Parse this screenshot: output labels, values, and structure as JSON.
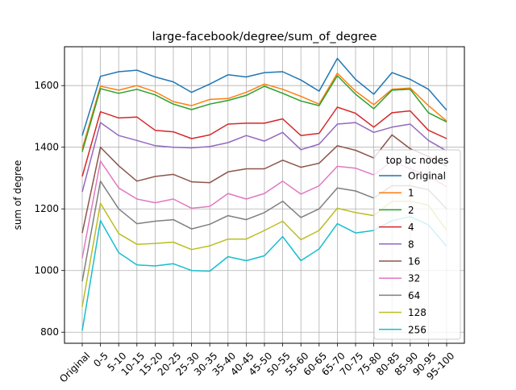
{
  "chart_data": {
    "type": "line",
    "title": "large-facebook/degree/sum_of_degree",
    "xlabel": "",
    "ylabel": "sum of degree",
    "categories": [
      "Original",
      "0-5",
      "5-10",
      "10-15",
      "15-20",
      "20-25",
      "25-30",
      "30-35",
      "35-40",
      "40-45",
      "45-50",
      "50-55",
      "55-60",
      "60-65",
      "65-70",
      "70-75",
      "75-80",
      "80-85",
      "85-90",
      "90-95",
      "95-100"
    ],
    "ylim": [
      764,
      1726
    ],
    "yticks": [
      800,
      1000,
      1200,
      1400,
      1600
    ],
    "grid": true,
    "legend": {
      "title": "top bc nodes",
      "placement": "right"
    },
    "series": [
      {
        "name": "Original",
        "color": "#1f77b4",
        "values": [
          1438,
          1630,
          1645,
          1650,
          1628,
          1612,
          1578,
          1605,
          1635,
          1628,
          1642,
          1645,
          1618,
          1582,
          1688,
          1620,
          1572,
          1642,
          1620,
          1588,
          1520
        ]
      },
      {
        "name": "1",
        "color": "#ff7f0e",
        "values": [
          1395,
          1598,
          1585,
          1600,
          1580,
          1548,
          1535,
          1555,
          1558,
          1578,
          1605,
          1588,
          1565,
          1540,
          1640,
          1582,
          1538,
          1588,
          1592,
          1535,
          1485
        ]
      },
      {
        "name": "2",
        "color": "#2ca02c",
        "values": [
          1385,
          1590,
          1575,
          1588,
          1570,
          1540,
          1522,
          1540,
          1552,
          1568,
          1598,
          1575,
          1550,
          1535,
          1632,
          1572,
          1525,
          1585,
          1588,
          1512,
          1482
        ]
      },
      {
        "name": "4",
        "color": "#d62728",
        "values": [
          1305,
          1515,
          1495,
          1498,
          1455,
          1450,
          1428,
          1440,
          1475,
          1478,
          1478,
          1492,
          1438,
          1445,
          1530,
          1510,
          1465,
          1512,
          1518,
          1455,
          1428
        ]
      },
      {
        "name": "8",
        "color": "#9467bd",
        "values": [
          1255,
          1480,
          1438,
          1422,
          1405,
          1400,
          1398,
          1402,
          1415,
          1438,
          1420,
          1448,
          1392,
          1410,
          1475,
          1480,
          1448,
          1465,
          1475,
          1422,
          1388
        ]
      },
      {
        "name": "16",
        "color": "#8c564b",
        "values": [
          1122,
          1400,
          1340,
          1290,
          1305,
          1312,
          1288,
          1285,
          1320,
          1330,
          1330,
          1358,
          1335,
          1348,
          1405,
          1390,
          1365,
          1440,
          1395,
          1370,
          1338
        ]
      },
      {
        "name": "32",
        "color": "#e377c2",
        "values": [
          1040,
          1355,
          1268,
          1232,
          1220,
          1232,
          1202,
          1208,
          1250,
          1232,
          1250,
          1290,
          1248,
          1275,
          1338,
          1332,
          1310,
          1355,
          1330,
          1305,
          1272
        ]
      },
      {
        "name": "64",
        "color": "#7f7f7f",
        "values": [
          965,
          1290,
          1200,
          1152,
          1160,
          1165,
          1135,
          1150,
          1178,
          1165,
          1188,
          1225,
          1172,
          1200,
          1268,
          1258,
          1235,
          1275,
          1275,
          1262,
          1200
        ]
      },
      {
        "name": "128",
        "color": "#bcbd22",
        "values": [
          882,
          1218,
          1120,
          1085,
          1088,
          1092,
          1068,
          1080,
          1102,
          1102,
          1130,
          1160,
          1100,
          1130,
          1202,
          1188,
          1178,
          1225,
          1225,
          1212,
          1130
        ]
      },
      {
        "name": "256",
        "color": "#17becf",
        "values": [
          805,
          1162,
          1058,
          1018,
          1015,
          1022,
          1000,
          998,
          1045,
          1032,
          1048,
          1110,
          1032,
          1070,
          1152,
          1122,
          1130,
          1162,
          1175,
          1148,
          1078
        ]
      }
    ]
  }
}
